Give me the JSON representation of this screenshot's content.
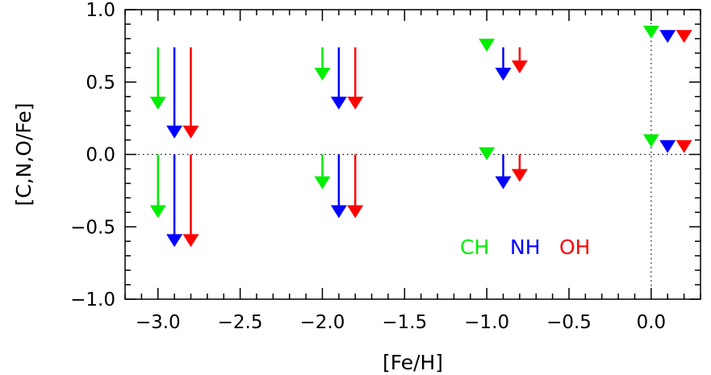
{
  "chart_data": {
    "type": "scatter",
    "title": "",
    "xlabel": "[Fe/H]",
    "ylabel": "[C,N,O/Fe]",
    "xlim": [
      -3.2,
      0.3
    ],
    "ylim": [
      -1.0,
      1.0
    ],
    "x_ticks": [
      -3.0,
      -2.5,
      -2.0,
      -1.5,
      -1.0,
      -0.5,
      0.0
    ],
    "x_tick_labels": [
      "−3.0",
      "−2.5",
      "−2.0",
      "−1.5",
      "−1.0",
      "−0.5",
      "0.0"
    ],
    "y_ticks": [
      1.0,
      0.5,
      0.0,
      -0.5,
      -1.0
    ],
    "y_tick_labels": [
      "1.0",
      "0.5",
      "0.0",
      "−0.5",
      "−1.0"
    ],
    "reference_lines": [
      {
        "orientation": "horizontal",
        "value": 0.0,
        "style": "dotted"
      },
      {
        "orientation": "vertical",
        "value": 0.0,
        "style": "dotted"
      }
    ],
    "marker": "down-triangle-upper-limit",
    "series": [
      {
        "name": "CH",
        "color": "#00ee00",
        "points": [
          {
            "x": -3.0,
            "y": 0.31,
            "arrow_from": 0.74
          },
          {
            "x": -3.0,
            "y": -0.44,
            "arrow_from": 0.0
          },
          {
            "x": -2.0,
            "y": 0.51,
            "arrow_from": 0.74
          },
          {
            "x": -2.0,
            "y": -0.24,
            "arrow_from": 0.0
          },
          {
            "x": -1.0,
            "y": 0.71
          },
          {
            "x": -1.0,
            "y": -0.04
          },
          {
            "x": 0.0,
            "y": 0.8
          },
          {
            "x": 0.0,
            "y": 0.05
          }
        ]
      },
      {
        "name": "NH",
        "color": "#0000ff",
        "points": [
          {
            "x": -2.9,
            "y": 0.11,
            "arrow_from": 0.74
          },
          {
            "x": -2.9,
            "y": -0.64,
            "arrow_from": 0.0
          },
          {
            "x": -1.9,
            "y": 0.31,
            "arrow_from": 0.74
          },
          {
            "x": -1.9,
            "y": -0.44,
            "arrow_from": 0.0
          },
          {
            "x": -0.9,
            "y": 0.51,
            "arrow_from": 0.74
          },
          {
            "x": -0.9,
            "y": -0.24,
            "arrow_from": 0.0
          },
          {
            "x": 0.1,
            "y": 0.77
          },
          {
            "x": 0.1,
            "y": 0.01
          }
        ]
      },
      {
        "name": "OH",
        "color": "#ff0000",
        "points": [
          {
            "x": -2.8,
            "y": 0.11,
            "arrow_from": 0.74
          },
          {
            "x": -2.8,
            "y": -0.64,
            "arrow_from": 0.0
          },
          {
            "x": -1.8,
            "y": 0.31,
            "arrow_from": 0.74
          },
          {
            "x": -1.8,
            "y": -0.44,
            "arrow_from": 0.0
          },
          {
            "x": -0.8,
            "y": 0.56,
            "arrow_from": 0.74
          },
          {
            "x": -0.8,
            "y": -0.19,
            "arrow_from": 0.0
          },
          {
            "x": 0.2,
            "y": 0.77
          },
          {
            "x": 0.2,
            "y": 0.01
          }
        ]
      }
    ],
    "legend": {
      "placement": "lower-right",
      "entries": [
        {
          "label": "CH",
          "color": "#00ee00"
        },
        {
          "label": "NH",
          "color": "#0000ff"
        },
        {
          "label": "OH",
          "color": "#ff0000"
        }
      ]
    }
  }
}
